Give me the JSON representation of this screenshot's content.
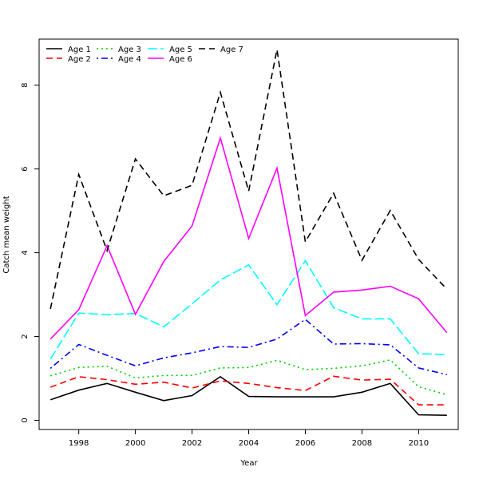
{
  "chart_data": {
    "type": "line",
    "title": "",
    "xlabel": "Year",
    "ylabel": "Catch mean weight",
    "xlim": [
      1996.6,
      2011.4
    ],
    "ylim": [
      -0.22,
      9.1
    ],
    "xticks": [
      1998,
      2000,
      2002,
      2004,
      2006,
      2008,
      2010
    ],
    "yticks": [
      0,
      2,
      4,
      6,
      8
    ],
    "grid": false,
    "legend_position": "top-left",
    "x": [
      1997,
      1998,
      1999,
      2000,
      2001,
      2002,
      2003,
      2004,
      2005,
      2006,
      2007,
      2008,
      2009,
      2010,
      2011
    ],
    "series": [
      {
        "name": "Age 1",
        "color": "#000000",
        "dash": "solid",
        "values": [
          0.49,
          0.72,
          0.88,
          0.67,
          0.47,
          0.59,
          1.04,
          0.57,
          0.56,
          0.56,
          0.56,
          0.67,
          0.88,
          0.13,
          0.12
        ]
      },
      {
        "name": "Age 2",
        "color": "#ff0000",
        "dash": "dashed",
        "values": [
          0.79,
          1.04,
          0.97,
          0.86,
          0.91,
          0.77,
          0.94,
          0.88,
          0.78,
          0.71,
          1.05,
          0.96,
          0.98,
          0.37,
          0.37
        ]
      },
      {
        "name": "Age 3",
        "color": "#00cd00",
        "dash": "dotted",
        "values": [
          1.06,
          1.26,
          1.29,
          1.01,
          1.07,
          1.07,
          1.25,
          1.26,
          1.43,
          1.21,
          1.24,
          1.3,
          1.44,
          0.8,
          0.61
        ]
      },
      {
        "name": "Age 4",
        "color": "#0000ff",
        "dash": "dotdash",
        "values": [
          1.24,
          1.81,
          1.55,
          1.3,
          1.49,
          1.61,
          1.76,
          1.74,
          1.94,
          2.41,
          1.82,
          1.83,
          1.8,
          1.25,
          1.09
        ]
      },
      {
        "name": "Age 5",
        "color": "#00ffff",
        "dash": "longdash",
        "values": [
          1.46,
          2.56,
          2.52,
          2.55,
          2.23,
          2.78,
          3.35,
          3.71,
          2.76,
          3.81,
          2.69,
          2.42,
          2.42,
          1.59,
          1.57
        ]
      },
      {
        "name": "Age 6",
        "color": "#ff00ff",
        "dash": "solid",
        "values": [
          1.94,
          2.64,
          4.17,
          2.53,
          3.79,
          4.64,
          6.74,
          4.34,
          6.02,
          2.5,
          3.06,
          3.11,
          3.2,
          2.9,
          2.09
        ]
      },
      {
        "name": "Age 7",
        "color": "#000000",
        "dash": "dashed",
        "values": [
          2.66,
          5.87,
          4.05,
          6.24,
          5.36,
          5.61,
          7.83,
          5.47,
          8.85,
          4.26,
          5.42,
          3.82,
          5.01,
          3.84,
          3.13
        ]
      }
    ]
  }
}
